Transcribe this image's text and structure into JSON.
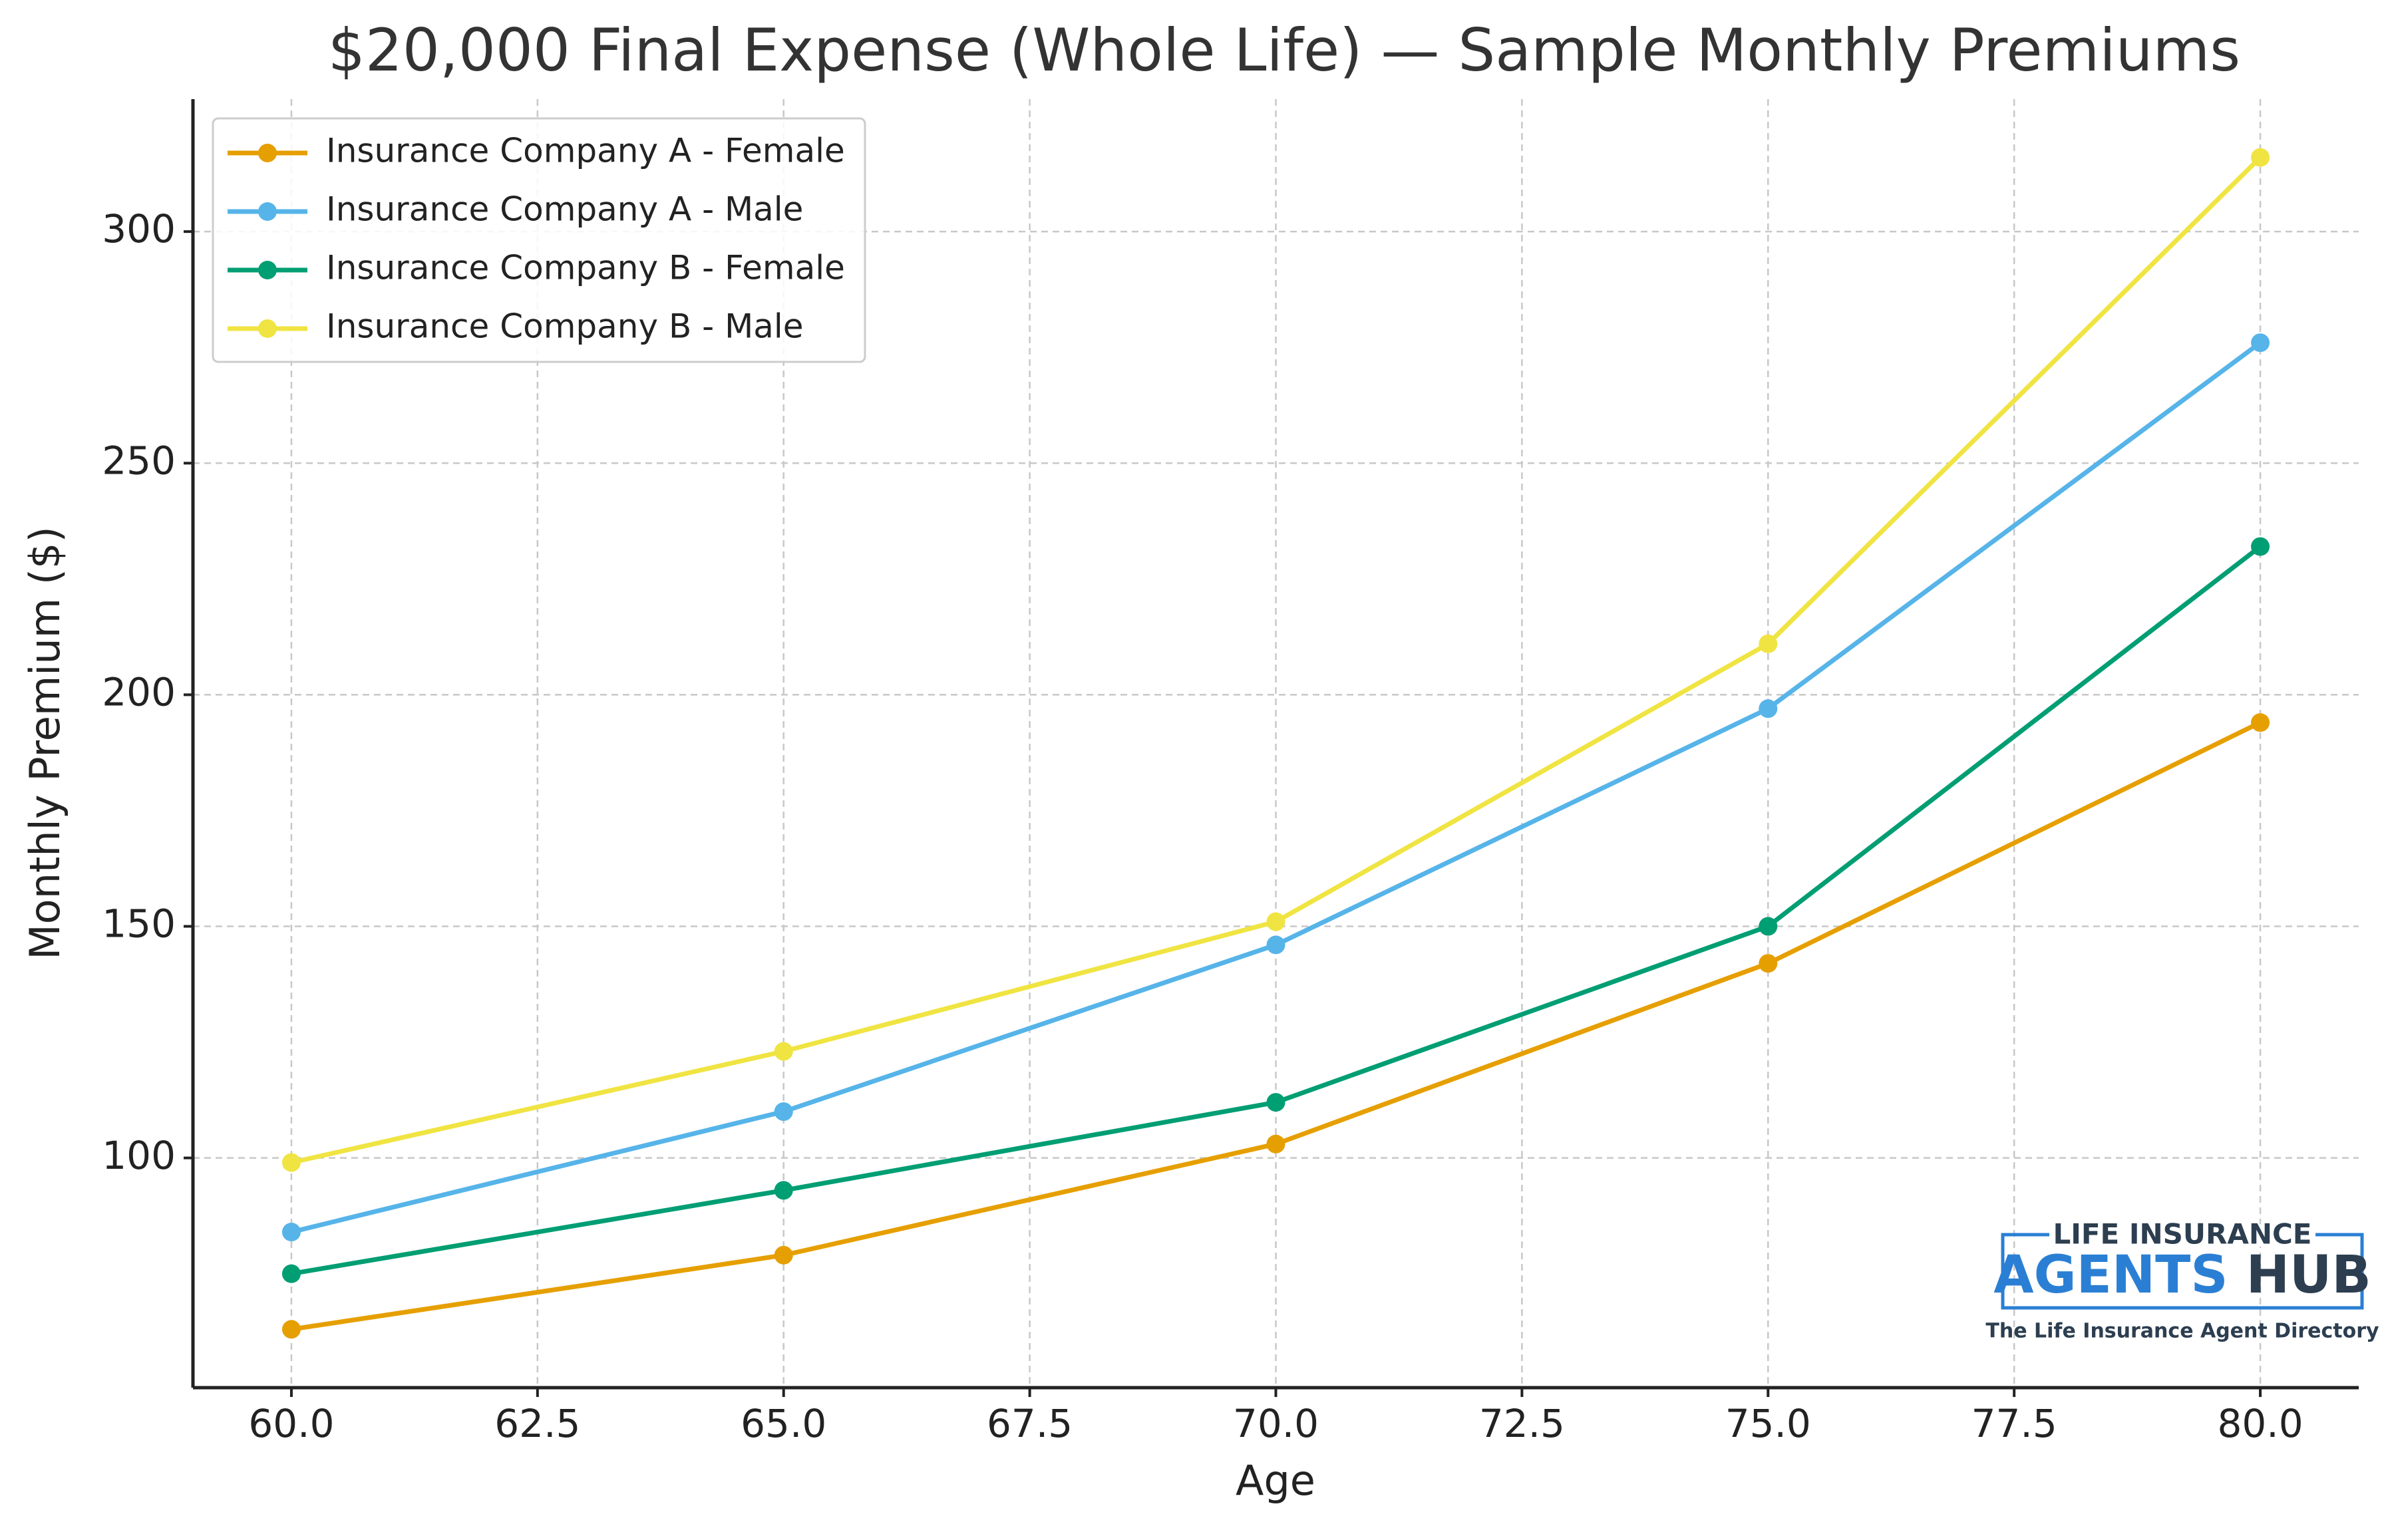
{
  "chart_data": {
    "type": "line",
    "title": "$20,000 Final Expense (Whole Life) — Sample Monthly Premiums",
    "x_label": "Age",
    "y_label": "Monthly Premium ($)",
    "x": [
      60,
      65,
      70,
      75,
      80
    ],
    "series": [
      {
        "name": "Insurance Company A - Female",
        "color": "#E69F00",
        "values": [
          63,
          79,
          103,
          142,
          194
        ]
      },
      {
        "name": "Insurance Company A - Male",
        "color": "#56B4E9",
        "values": [
          84,
          110,
          146,
          197,
          276
        ]
      },
      {
        "name": "Insurance Company B - Female",
        "color": "#009E73",
        "values": [
          75,
          93,
          112,
          150,
          232
        ]
      },
      {
        "name": "Insurance Company B - Male",
        "color": "#F0E442",
        "values": [
          99,
          123,
          151,
          211,
          316
        ]
      }
    ],
    "xlim": [
      59,
      81
    ],
    "xticks": [
      {
        "value": 60,
        "label": "60.0"
      },
      {
        "value": 62.5,
        "label": "62.5"
      },
      {
        "value": 65,
        "label": "65.0"
      },
      {
        "value": 67.5,
        "label": "67.5"
      },
      {
        "value": 70,
        "label": "70.0"
      },
      {
        "value": 72.5,
        "label": "72.5"
      },
      {
        "value": 75,
        "label": "75.0"
      },
      {
        "value": 77.5,
        "label": "77.5"
      },
      {
        "value": 80,
        "label": "80.0"
      }
    ],
    "ylim": [
      50.4,
      328.6
    ],
    "yticks": [
      100,
      150,
      200,
      250,
      300
    ],
    "grid": true,
    "legend": "upper left",
    "watermark": {
      "line1": "LIFE INSURANCE",
      "line2a": "AGENTS",
      "line2b": "HUB",
      "tagline": "The Life Insurance Agent Directory"
    }
  }
}
